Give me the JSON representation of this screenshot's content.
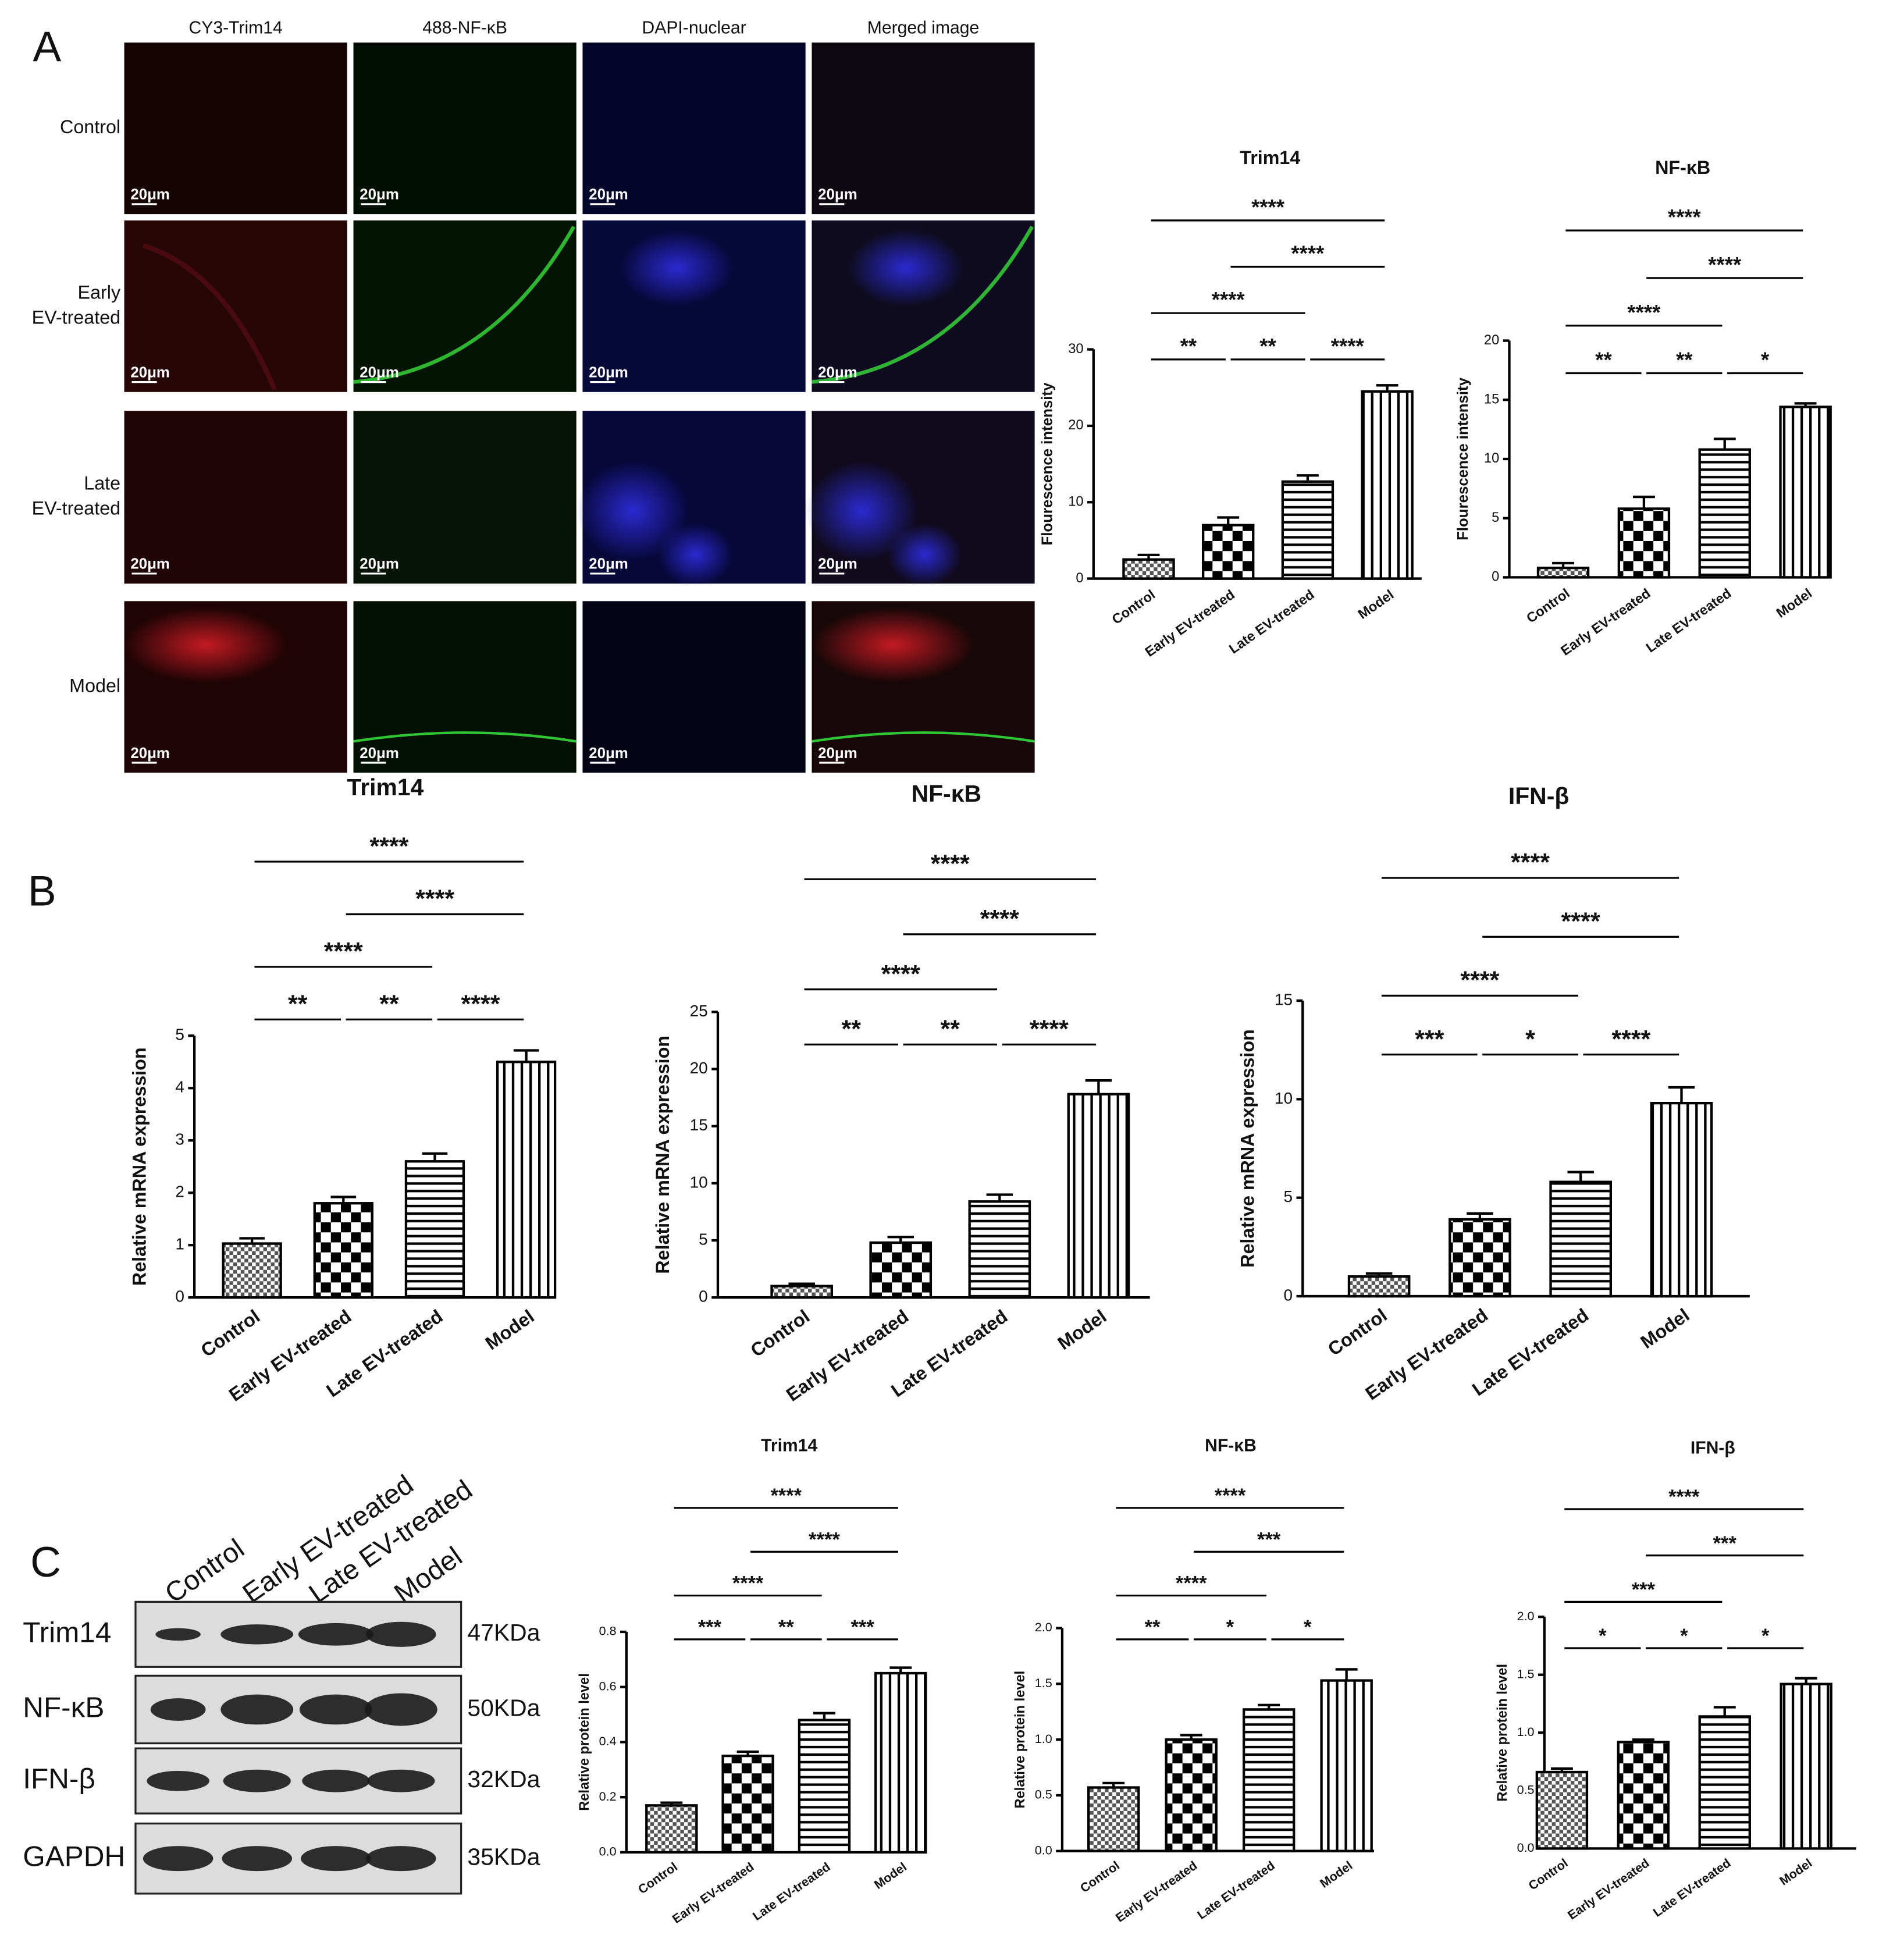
{
  "panel_labels": [
    "A",
    "B",
    "C"
  ],
  "fluorescence_images": {
    "columns": [
      "CY3-Trim14",
      "488-NF-κB",
      "DAPI-nuclear",
      "Merged image"
    ],
    "rows": [
      [
        "Control"
      ],
      [
        "Early",
        "EV-treated"
      ],
      [
        "Late",
        "EV-treated"
      ],
      [
        "Model"
      ]
    ],
    "scale_bar": "20μm"
  },
  "western_blot": {
    "lanes": [
      "Control",
      "Early EV-treated",
      "Late EV-treated",
      "Model"
    ],
    "proteins": [
      {
        "name": "Trim14",
        "size": "47KDa"
      },
      {
        "name": "NF-κB",
        "size": "50KDa"
      },
      {
        "name": "IFN-β",
        "size": "32KDa"
      },
      {
        "name": "GAPDH",
        "size": "35KDa"
      }
    ]
  },
  "chart_data": [
    {
      "type": "bar",
      "title": "Trim14",
      "y_label": "Flourescence intensity",
      "categories": [
        "Control",
        "Early EV-treated",
        "Late EV-treated",
        "Model"
      ],
      "values": [
        2.5,
        7,
        12.7,
        24.5
      ],
      "error": [
        0.6,
        1,
        0.8,
        0.8
      ],
      "ylim": [
        0,
        30
      ],
      "yticks": [
        0,
        10,
        20,
        30
      ],
      "color": "#000000",
      "patterns": [
        "crosshatch",
        "checker",
        "hlines",
        "vlines"
      ],
      "comparisons": [
        {
          "from": 0,
          "to": 1,
          "label": "**"
        },
        {
          "from": 1,
          "to": 2,
          "label": "**"
        },
        {
          "from": 2,
          "to": 3,
          "label": "****"
        },
        {
          "from": 0,
          "to": 2,
          "label": "****"
        },
        {
          "from": 1,
          "to": 3,
          "label": "****"
        },
        {
          "from": 0,
          "to": 3,
          "label": "****"
        }
      ]
    },
    {
      "type": "bar",
      "title": "NF-κB",
      "y_label": "Flourescence intensity",
      "categories": [
        "Control",
        "Early EV-treated",
        "Late EV-treated",
        "Model"
      ],
      "values": [
        0.8,
        5.8,
        10.8,
        14.4
      ],
      "error": [
        0.4,
        1,
        0.9,
        0.3
      ],
      "ylim": [
        0,
        20
      ],
      "yticks": [
        0,
        5,
        10,
        15,
        20
      ],
      "color": "#000000",
      "patterns": [
        "crosshatch",
        "checker",
        "hlines",
        "vlines"
      ],
      "comparisons": [
        {
          "from": 0,
          "to": 1,
          "label": "**"
        },
        {
          "from": 1,
          "to": 2,
          "label": "**"
        },
        {
          "from": 2,
          "to": 3,
          "label": "*"
        },
        {
          "from": 0,
          "to": 2,
          "label": "****"
        },
        {
          "from": 1,
          "to": 3,
          "label": "****"
        },
        {
          "from": 0,
          "to": 3,
          "label": "****"
        }
      ]
    },
    {
      "type": "bar",
      "title": "Trim14",
      "y_label": "Relative mRNA expression",
      "categories": [
        "Control",
        "Early EV-treated",
        "Late EV-treated",
        "Model"
      ],
      "values": [
        1.03,
        1.8,
        2.6,
        4.5
      ],
      "error": [
        0.1,
        0.12,
        0.15,
        0.22
      ],
      "ylim": [
        0,
        5
      ],
      "yticks": [
        0,
        1,
        2,
        3,
        4,
        5
      ],
      "color": "#000000",
      "patterns": [
        "crosshatch",
        "checker",
        "hlines",
        "vlines"
      ],
      "comparisons": [
        {
          "from": 0,
          "to": 1,
          "label": "**"
        },
        {
          "from": 1,
          "to": 2,
          "label": "**"
        },
        {
          "from": 2,
          "to": 3,
          "label": "****"
        },
        {
          "from": 0,
          "to": 2,
          "label": "****"
        },
        {
          "from": 1,
          "to": 3,
          "label": "****"
        },
        {
          "from": 0,
          "to": 3,
          "label": "****"
        }
      ]
    },
    {
      "type": "bar",
      "title": "NF-κB",
      "y_label": "Relative mRNA expression",
      "categories": [
        "Control",
        "Early EV-treated",
        "Late EV-treated",
        "Model"
      ],
      "values": [
        1,
        4.8,
        8.4,
        17.8
      ],
      "error": [
        0.2,
        0.5,
        0.6,
        1.2
      ],
      "ylim": [
        0,
        25
      ],
      "yticks": [
        0,
        5,
        10,
        15,
        20,
        25
      ],
      "color": "#000000",
      "patterns": [
        "crosshatch",
        "checker",
        "hlines",
        "vlines"
      ],
      "comparisons": [
        {
          "from": 0,
          "to": 1,
          "label": "**"
        },
        {
          "from": 1,
          "to": 2,
          "label": "**"
        },
        {
          "from": 2,
          "to": 3,
          "label": "****"
        },
        {
          "from": 0,
          "to": 2,
          "label": "****"
        },
        {
          "from": 1,
          "to": 3,
          "label": "****"
        },
        {
          "from": 0,
          "to": 3,
          "label": "****"
        }
      ]
    },
    {
      "type": "bar",
      "title": "IFN-β",
      "y_label": "Relative mRNA expression",
      "categories": [
        "Control",
        "Early EV-treated",
        "Late EV-treated",
        "Model"
      ],
      "values": [
        1,
        3.9,
        5.8,
        9.8
      ],
      "error": [
        0.15,
        0.3,
        0.5,
        0.8
      ],
      "ylim": [
        0,
        15
      ],
      "yticks": [
        0,
        5,
        10,
        15
      ],
      "color": "#000000",
      "patterns": [
        "crosshatch",
        "checker",
        "hlines",
        "vlines"
      ],
      "comparisons": [
        {
          "from": 0,
          "to": 1,
          "label": "***"
        },
        {
          "from": 1,
          "to": 2,
          "label": "*"
        },
        {
          "from": 2,
          "to": 3,
          "label": "****"
        },
        {
          "from": 0,
          "to": 2,
          "label": "****"
        },
        {
          "from": 1,
          "to": 3,
          "label": "****"
        },
        {
          "from": 0,
          "to": 3,
          "label": "****"
        }
      ]
    },
    {
      "type": "bar",
      "title": "Trim14",
      "y_label": "Relative protein level",
      "categories": [
        "Control",
        "Early EV-treated",
        "Late EV-treated",
        "Model"
      ],
      "values": [
        0.17,
        0.35,
        0.48,
        0.65
      ],
      "error": [
        0.01,
        0.015,
        0.025,
        0.02
      ],
      "ylim": [
        0,
        0.8
      ],
      "yticks": [
        {
          "value": 0,
          "label": "0.0"
        },
        0.2,
        0.4,
        0.6,
        0.8
      ],
      "color": "#000000",
      "patterns": [
        "crosshatch",
        "checker",
        "hlines",
        "vlines"
      ],
      "comparisons": [
        {
          "from": 0,
          "to": 1,
          "label": "***"
        },
        {
          "from": 1,
          "to": 2,
          "label": "**"
        },
        {
          "from": 2,
          "to": 3,
          "label": "***"
        },
        {
          "from": 0,
          "to": 2,
          "label": "****"
        },
        {
          "from": 1,
          "to": 3,
          "label": "****"
        },
        {
          "from": 0,
          "to": 3,
          "label": "****"
        }
      ]
    },
    {
      "type": "bar",
      "title": "NF-κB",
      "y_label": "Relative protein level",
      "categories": [
        "Control",
        "Early EV-treated",
        "Late EV-treated",
        "Model"
      ],
      "values": [
        0.57,
        1.0,
        1.27,
        1.53
      ],
      "error": [
        0.04,
        0.04,
        0.04,
        0.1
      ],
      "ylim": [
        0,
        2
      ],
      "yticks": [
        {
          "value": 0,
          "label": "0.0"
        },
        0.5,
        {
          "value": 1,
          "label": "1.0"
        },
        1.5,
        {
          "value": 2,
          "label": "2.0"
        }
      ],
      "color": "#000000",
      "patterns": [
        "crosshatch",
        "checker",
        "hlines",
        "vlines"
      ],
      "comparisons": [
        {
          "from": 0,
          "to": 1,
          "label": "**"
        },
        {
          "from": 1,
          "to": 2,
          "label": "*"
        },
        {
          "from": 2,
          "to": 3,
          "label": "*"
        },
        {
          "from": 0,
          "to": 2,
          "label": "****"
        },
        {
          "from": 1,
          "to": 3,
          "label": "***"
        },
        {
          "from": 0,
          "to": 3,
          "label": "****"
        }
      ]
    },
    {
      "type": "bar",
      "title": "IFN-β",
      "y_label": "Relative protein level",
      "categories": [
        "Control",
        "Early EV-treated",
        "Late EV-treated",
        "Model"
      ],
      "values": [
        0.66,
        0.92,
        1.14,
        1.42
      ],
      "error": [
        0.03,
        0.02,
        0.08,
        0.05
      ],
      "ylim": [
        0,
        2
      ],
      "yticks": [
        {
          "value": 0,
          "label": "0.0"
        },
        0.5,
        {
          "value": 1,
          "label": "1.0"
        },
        1.5,
        {
          "value": 2,
          "label": "2.0"
        }
      ],
      "color": "#000000",
      "patterns": [
        "crosshatch",
        "checker",
        "hlines",
        "vlines"
      ],
      "comparisons": [
        {
          "from": 0,
          "to": 1,
          "label": "*"
        },
        {
          "from": 1,
          "to": 2,
          "label": "*"
        },
        {
          "from": 2,
          "to": 3,
          "label": "*"
        },
        {
          "from": 0,
          "to": 2,
          "label": "***"
        },
        {
          "from": 1,
          "to": 3,
          "label": "***"
        },
        {
          "from": 0,
          "to": 3,
          "label": "****"
        }
      ]
    }
  ]
}
